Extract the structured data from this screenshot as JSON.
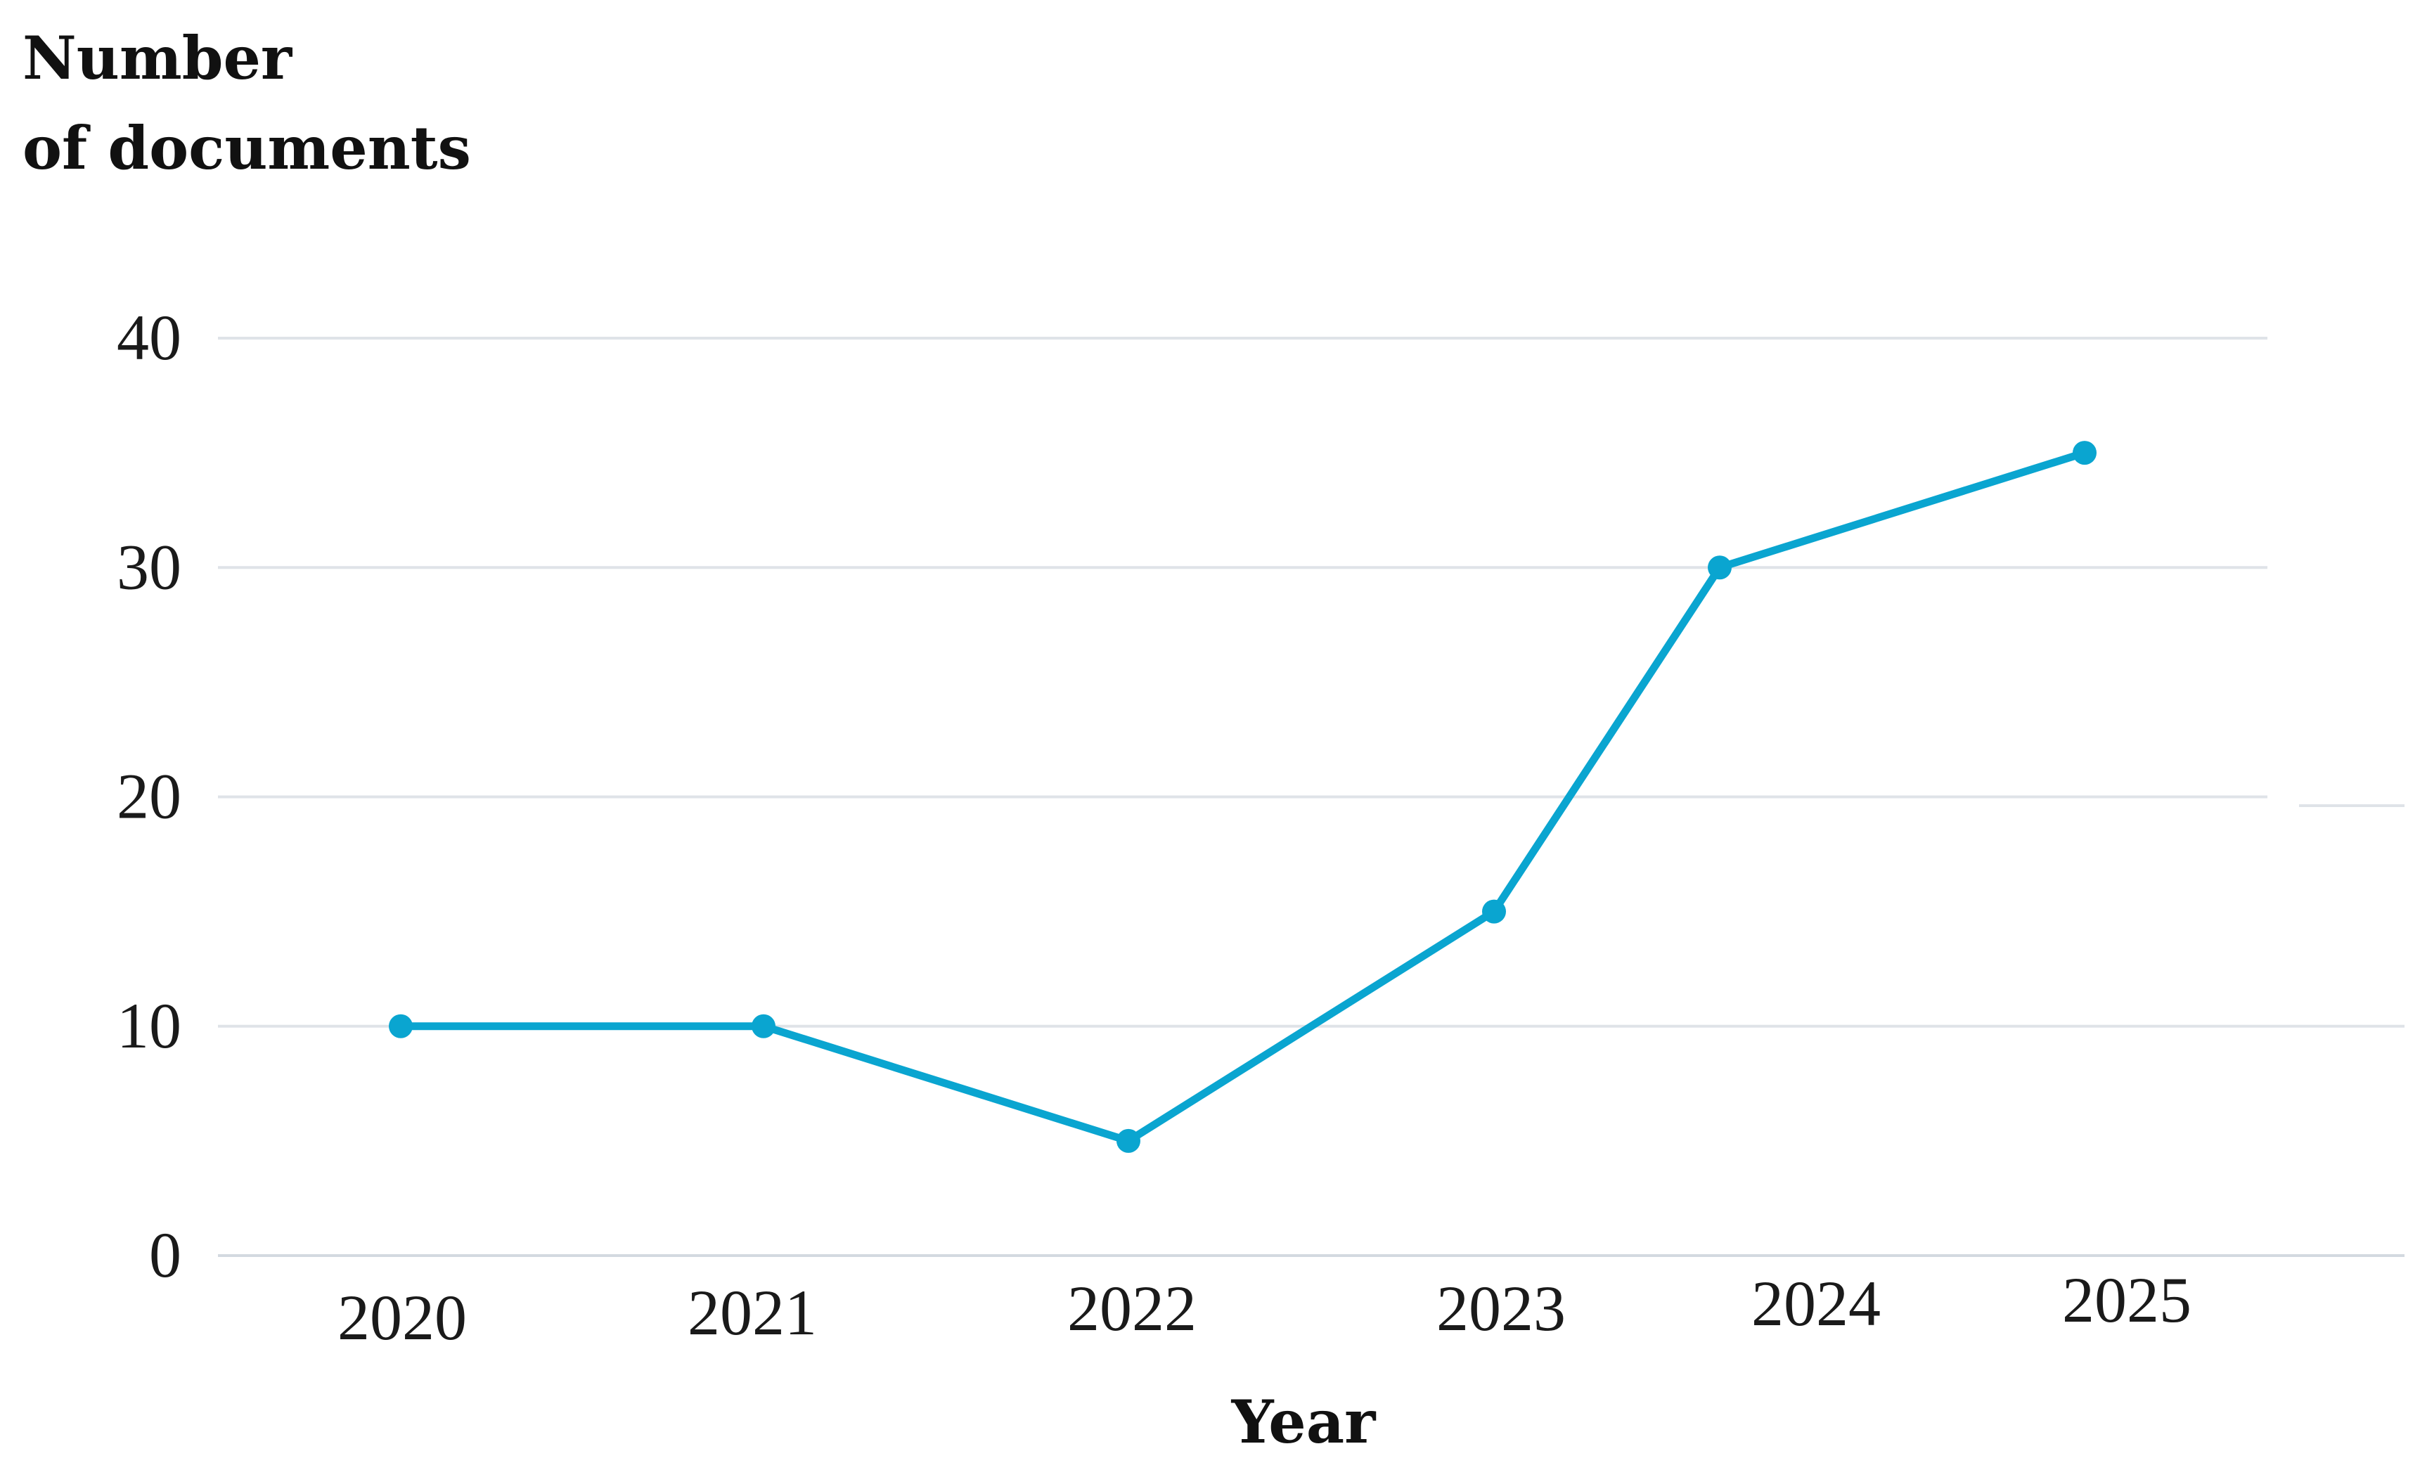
{
  "chart_data": {
    "type": "line",
    "ylabel_lines": [
      "Number",
      "of documents"
    ],
    "xlabel": "Year",
    "categories": [
      "2020",
      "2021",
      "2022",
      "2023",
      "2024",
      "2025"
    ],
    "series": [
      {
        "values": [
          10,
          10,
          5,
          15,
          30,
          35
        ]
      }
    ],
    "ylim": [
      0,
      40
    ],
    "yticks": [
      "0",
      "10",
      "20",
      "30",
      "40"
    ],
    "grid": true,
    "legend": "none",
    "colors": {
      "series": "#0aa5d0",
      "grid": "#dfe3e8",
      "text": "#111111"
    }
  }
}
